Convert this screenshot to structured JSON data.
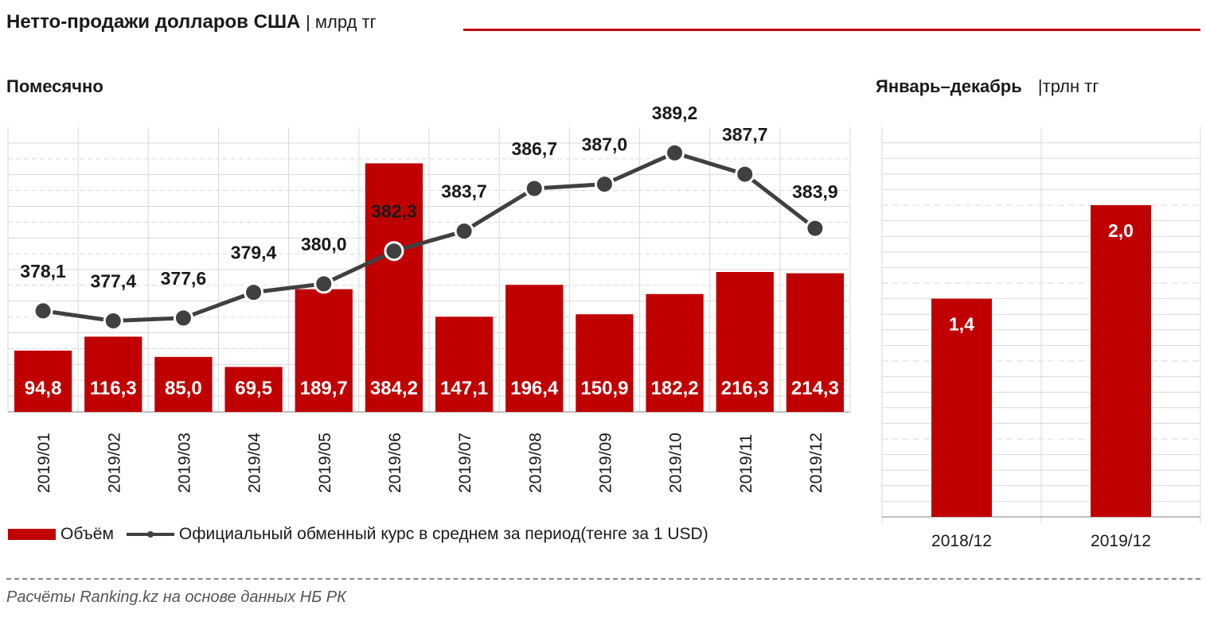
{
  "title": "Нетто-продажи долларов США",
  "title_unit": "| млрд тг",
  "monthly": {
    "subtitle": "Помесячно"
  },
  "annual": {
    "subtitle": "Январь–декабрь",
    "unit": "|трлн тг"
  },
  "legend": {
    "volume": "Объём",
    "rate": "Официальный обменный курс в среднем за период(тенге за 1 USD)"
  },
  "source": "Расчёты Ranking.kz на основе данных НБ РК",
  "colors": {
    "bar": "#c00000",
    "line": "#404040",
    "accent": "#c00000"
  },
  "chart_data": [
    {
      "type": "bar+line",
      "title": "Помесячно",
      "categories": [
        "2019/01",
        "2019/02",
        "2019/03",
        "2019/04",
        "2019/05",
        "2019/06",
        "2019/07",
        "2019/08",
        "2019/09",
        "2019/10",
        "2019/11",
        "2019/12"
      ],
      "series": [
        {
          "name": "Объём",
          "type": "bar",
          "values": [
            94.8,
            116.3,
            85.0,
            69.5,
            189.7,
            384.2,
            147.1,
            196.4,
            150.9,
            182.2,
            216.3,
            214.3
          ],
          "labels": [
            "94,8",
            "116,3",
            "85,0",
            "69,5",
            "189,7",
            "384,2",
            "147,1",
            "196,4",
            "150,9",
            "182,2",
            "216,3",
            "214,3"
          ]
        },
        {
          "name": "Официальный обменный курс в среднем за период(тенге за 1 USD)",
          "type": "line",
          "values": [
            378.1,
            377.4,
            377.6,
            379.4,
            380.0,
            382.3,
            383.7,
            386.7,
            387.0,
            389.2,
            387.7,
            383.9
          ],
          "labels": [
            "378,1",
            "377,4",
            "377,6",
            "379,4",
            "380,0",
            "382,3",
            "383,7",
            "386,7",
            "387,0",
            "389,2",
            "387,7",
            "383,9"
          ]
        }
      ],
      "bar_ylim": [
        0,
        440
      ],
      "line_ylim": [
        371,
        391
      ],
      "legend": "bottom"
    },
    {
      "type": "bar",
      "title": "Январь–декабрь",
      "categories": [
        "2018/12",
        "2019/12"
      ],
      "values": [
        1.4,
        2.0
      ],
      "labels": [
        "1,4",
        "2,0"
      ],
      "ylim": [
        0,
        2.5
      ]
    }
  ]
}
